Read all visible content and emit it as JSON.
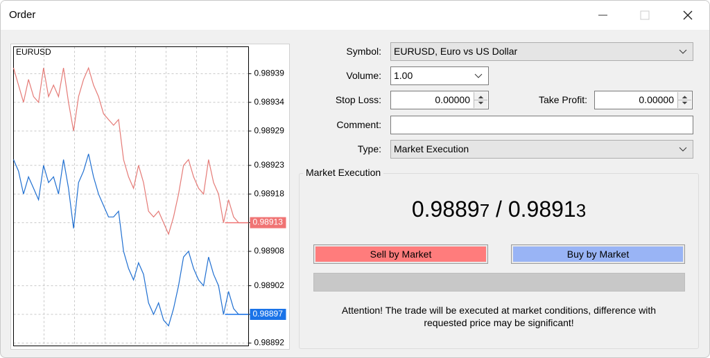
{
  "window": {
    "title": "Order"
  },
  "chart": {
    "type": "line",
    "symbol": "EURUSD",
    "ylim": [
      0.988915,
      0.989437
    ],
    "yticks": [
      0.98939,
      0.98934,
      0.98929,
      0.98923,
      0.98918,
      0.98913,
      0.98908,
      0.98902,
      0.98897,
      0.98892
    ],
    "grid": true,
    "series": [
      {
        "color": "#e57a76",
        "values": [
          0.9894,
          0.98937,
          0.98934,
          0.98938,
          0.98935,
          0.98934,
          0.9894,
          0.98935,
          0.98937,
          0.98935,
          0.9894,
          0.98934,
          0.98929,
          0.98935,
          0.98938,
          0.9894,
          0.98937,
          0.98935,
          0.98932,
          0.98931,
          0.9893,
          0.98931,
          0.98924,
          0.98921,
          0.98919,
          0.98923,
          0.9892,
          0.98915,
          0.98914,
          0.98915,
          0.98913,
          0.98911,
          0.98914,
          0.98918,
          0.98923,
          0.98924,
          0.98921,
          0.98919,
          0.98918,
          0.98924,
          0.9892,
          0.98918,
          0.98913,
          0.98917,
          0.98914,
          0.98913,
          0.98913,
          0.98913
        ]
      },
      {
        "color": "#1f6fd1",
        "values": [
          0.98924,
          0.98922,
          0.98918,
          0.98921,
          0.98919,
          0.98917,
          0.98923,
          0.9892,
          0.98921,
          0.98918,
          0.98924,
          0.98919,
          0.98912,
          0.9892,
          0.98922,
          0.98925,
          0.98921,
          0.98918,
          0.98916,
          0.98914,
          0.98914,
          0.98915,
          0.98908,
          0.98905,
          0.98903,
          0.98906,
          0.98904,
          0.98899,
          0.98897,
          0.98899,
          0.98896,
          0.98895,
          0.98898,
          0.98902,
          0.98907,
          0.98908,
          0.98905,
          0.98903,
          0.98902,
          0.98907,
          0.98904,
          0.98902,
          0.98897,
          0.98901,
          0.98898,
          0.98897,
          0.98897,
          0.98897
        ]
      }
    ],
    "price_marks": [
      {
        "value": 0.98913,
        "color": "#f07474"
      },
      {
        "value": 0.98897,
        "color": "#1a73e8"
      }
    ]
  },
  "form": {
    "symbol": {
      "label": "Symbol:",
      "value": "EURUSD, Euro vs US Dollar"
    },
    "volume": {
      "label": "Volume:",
      "value": "1.00"
    },
    "stop_loss": {
      "label": "Stop Loss:",
      "value": "0.00000"
    },
    "take_profit": {
      "label": "Take Profit:",
      "value": "0.00000"
    },
    "comment": {
      "label": "Comment:"
    },
    "type": {
      "label": "Type:",
      "value": "Market Execution"
    }
  },
  "execution": {
    "title": "Market Execution",
    "bid": {
      "main": "0.9889",
      "last": "7"
    },
    "separator": "/",
    "ask": {
      "main": "0.9891",
      "last": "3"
    },
    "sell_button": "Sell by Market",
    "buy_button": "Buy by Market",
    "notice": [
      "Attention! The trade will be executed at market conditions, difference with",
      "requested price may be significant!"
    ]
  }
}
